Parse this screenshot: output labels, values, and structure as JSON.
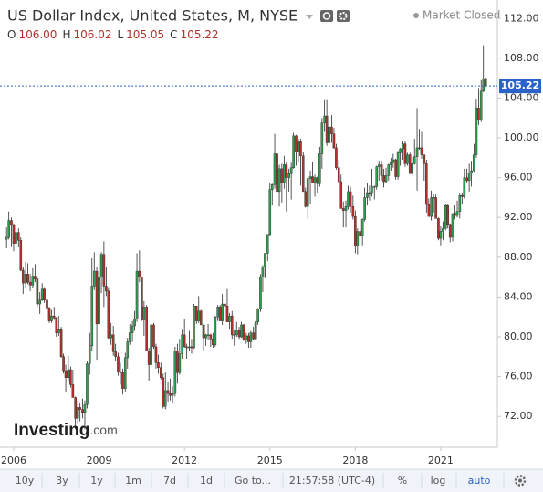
{
  "chart_data": {
    "type": "candlestick",
    "title": "US Dollar Index, United States, M, NYSE",
    "status": "Market Closed",
    "ohlc_labels": [
      "O",
      "H",
      "L",
      "C"
    ],
    "ohlc_values": [
      "106.00",
      "106.02",
      "105.05",
      "105.22"
    ],
    "watermark": [
      "Investing",
      ".com"
    ],
    "toolbar": [
      "10y",
      "3y",
      "1y",
      "1m",
      "7d",
      "1d",
      "Go to...",
      "21:57:58 (UTC-4)",
      "%",
      "log",
      "auto"
    ],
    "up_color": "#2f9d4e",
    "down_color": "#b3302b",
    "current_value": 105.22,
    "current_color": "#2a62c9",
    "log_scale": false,
    "grid": false,
    "xlim": [
      2005.68,
      2022.99
    ],
    "xticks": [
      2006,
      2009,
      2012,
      2015,
      2018,
      2021
    ],
    "ylim": [
      68.9,
      113.4
    ],
    "yticks": [
      {
        "value": 72,
        "label": "72.00"
      },
      {
        "value": 76,
        "label": "76.00"
      },
      {
        "value": 80,
        "label": "80.00"
      },
      {
        "value": 84,
        "label": "84.00"
      },
      {
        "value": 88,
        "label": "88.00"
      },
      {
        "value": 92,
        "label": "92.00"
      },
      {
        "value": 96,
        "label": "96.00"
      },
      {
        "value": 100,
        "label": "100.00"
      },
      {
        "value": 104,
        "label": "104.00"
      },
      {
        "value": 108,
        "label": "108.00"
      },
      {
        "value": 112,
        "label": "112.00"
      }
    ],
    "x": [
      2005.75,
      2005.83,
      2005.92,
      2006.0,
      2006.08,
      2006.17,
      2006.25,
      2006.33,
      2006.42,
      2006.5,
      2006.58,
      2006.67,
      2006.75,
      2006.83,
      2006.92,
      2007.0,
      2007.08,
      2007.17,
      2007.25,
      2007.33,
      2007.42,
      2007.5,
      2007.58,
      2007.67,
      2007.75,
      2007.83,
      2007.92,
      2008.0,
      2008.08,
      2008.17,
      2008.25,
      2008.33,
      2008.42,
      2008.5,
      2008.58,
      2008.67,
      2008.75,
      2008.83,
      2008.92,
      2009.0,
      2009.08,
      2009.17,
      2009.25,
      2009.33,
      2009.42,
      2009.5,
      2009.58,
      2009.67,
      2009.75,
      2009.83,
      2009.92,
      2010.0,
      2010.08,
      2010.17,
      2010.25,
      2010.33,
      2010.42,
      2010.5,
      2010.58,
      2010.67,
      2010.75,
      2010.83,
      2010.92,
      2011.0,
      2011.08,
      2011.17,
      2011.25,
      2011.33,
      2011.42,
      2011.5,
      2011.58,
      2011.67,
      2011.75,
      2011.83,
      2011.92,
      2012.0,
      2012.08,
      2012.17,
      2012.25,
      2012.33,
      2012.42,
      2012.5,
      2012.58,
      2012.67,
      2012.75,
      2012.83,
      2012.92,
      2013.0,
      2013.08,
      2013.17,
      2013.25,
      2013.33,
      2013.42,
      2013.5,
      2013.58,
      2013.67,
      2013.75,
      2013.83,
      2013.92,
      2014.0,
      2014.08,
      2014.17,
      2014.25,
      2014.33,
      2014.42,
      2014.5,
      2014.58,
      2014.67,
      2014.75,
      2014.83,
      2014.92,
      2015.0,
      2015.08,
      2015.17,
      2015.25,
      2015.33,
      2015.42,
      2015.5,
      2015.58,
      2015.67,
      2015.75,
      2015.83,
      2015.92,
      2016.0,
      2016.08,
      2016.17,
      2016.25,
      2016.33,
      2016.42,
      2016.5,
      2016.58,
      2016.67,
      2016.75,
      2016.83,
      2016.92,
      2017.0,
      2017.08,
      2017.17,
      2017.25,
      2017.33,
      2017.42,
      2017.5,
      2017.58,
      2017.67,
      2017.75,
      2017.83,
      2017.92,
      2018.0,
      2018.08,
      2018.17,
      2018.25,
      2018.33,
      2018.42,
      2018.5,
      2018.58,
      2018.67,
      2018.75,
      2018.83,
      2018.92,
      2019.0,
      2019.08,
      2019.17,
      2019.25,
      2019.33,
      2019.42,
      2019.5,
      2019.58,
      2019.67,
      2019.75,
      2019.83,
      2019.92,
      2020.0,
      2020.08,
      2020.17,
      2020.25,
      2020.33,
      2020.42,
      2020.5,
      2020.58,
      2020.67,
      2020.75,
      2020.83,
      2020.92,
      2021.0,
      2021.08,
      2021.17,
      2021.25,
      2021.33,
      2021.42,
      2021.5,
      2021.58,
      2021.67,
      2021.75,
      2021.83,
      2021.92,
      2022.0,
      2022.08,
      2022.17,
      2022.25,
      2022.33,
      2022.42,
      2022.5,
      2022.58
    ],
    "open": [
      89.8,
      90.0,
      91.7,
      91.2,
      89.4,
      90.5,
      89.7,
      86.7,
      85.4,
      86.3,
      85.5,
      85.2,
      86.1,
      85.8,
      83.3,
      83.7,
      84.8,
      83.7,
      82.9,
      81.6,
      82.1,
      81.9,
      80.4,
      80.8,
      78.0,
      76.6,
      75.9,
      76.7,
      75.2,
      73.9,
      71.8,
      72.9,
      72.7,
      72.4,
      73.2,
      77.3,
      79.1,
      85.1,
      86.6,
      81.3,
      86.0,
      88.3,
      85.1,
      84.6,
      79.9,
      80.2,
      78.5,
      78.0,
      76.5,
      76.4,
      74.8,
      77.9,
      79.5,
      80.4,
      81.1,
      81.8,
      86.6,
      86.0,
      81.7,
      83.0,
      78.6,
      77.2,
      81.2,
      79.0,
      77.4,
      76.9,
      75.9,
      73.0,
      74.6,
      74.3,
      74.1,
      74.3,
      78.6,
      76.4,
      78.3,
      80.2,
      79.0,
      78.9,
      79.0,
      78.9,
      83.1,
      81.6,
      82.6,
      81.2,
      79.9,
      80.2,
      80.2,
      79.8,
      79.2,
      82.0,
      83.0,
      81.6,
      83.3,
      83.1,
      81.5,
      82.1,
      80.2,
      80.2,
      80.7,
      80.0,
      81.2,
      79.7,
      80.1,
      79.5,
      80.4,
      79.8,
      81.5,
      82.8,
      86.0,
      87.0,
      88.4,
      90.3,
      94.8,
      95.3,
      98.4,
      94.6,
      96.9,
      95.5,
      97.3,
      96.0,
      96.4,
      97.0,
      100.2,
      98.6,
      99.6,
      98.2,
      94.6,
      93.1,
      95.9,
      96.1,
      95.5,
      96.0,
      95.4,
      98.4,
      101.5,
      102.2,
      99.5,
      101.1,
      100.4,
      99.0,
      97.0,
      95.6,
      92.9,
      92.7,
      93.1,
      94.6,
      93.1,
      92.1,
      89.1,
      90.6,
      90.2,
      91.8,
      94.0,
      94.5,
      94.5,
      95.1,
      95.1,
      97.1,
      97.3,
      96.2,
      95.6,
      96.2,
      97.3,
      97.5,
      97.8,
      96.1,
      98.5,
      98.9,
      99.4,
      97.4,
      98.3,
      96.4,
      97.4,
      98.1,
      99.0,
      99.0,
      98.3,
      97.4,
      93.3,
      92.1,
      94.0,
      94.0,
      91.9,
      89.9,
      90.6,
      90.9,
      93.2,
      91.3,
      90.0,
      92.4,
      92.2,
      92.6,
      94.2,
      94.1,
      96.0,
      95.7,
      96.5,
      96.7,
      98.3,
      103.0,
      101.8,
      104.7,
      106.0
    ],
    "high": [
      91.0,
      92.6,
      92.0,
      91.4,
      91.5,
      90.9,
      90.0,
      87.0,
      87.6,
      87.4,
      86.3,
      86.9,
      87.3,
      86.0,
      84.5,
      85.4,
      85.0,
      84.4,
      83.0,
      82.7,
      83.0,
      82.0,
      82.1,
      81.0,
      78.3,
      77.2,
      78.1,
      77.0,
      76.7,
      74.0,
      73.6,
      73.4,
      73.8,
      73.6,
      77.6,
      80.4,
      87.9,
      88.5,
      87.0,
      86.3,
      88.5,
      89.6,
      87.0,
      85.0,
      81.4,
      81.1,
      79.3,
      78.4,
      77.4,
      76.8,
      78.4,
      79.9,
      81.3,
      81.6,
      82.6,
      88.4,
      88.7,
      86.0,
      83.6,
      83.2,
      78.9,
      81.4,
      81.4,
      79.3,
      78.2,
      77.4,
      76.3,
      76.4,
      75.5,
      75.8,
      75.0,
      79.0,
      79.3,
      79.8,
      80.8,
      81.8,
      79.3,
      80.6,
      79.8,
      83.3,
      83.1,
      84.1,
      82.7,
      81.2,
      80.3,
      81.3,
      80.3,
      80.4,
      82.1,
      83.2,
      83.2,
      84.3,
      83.4,
      84.8,
      82.4,
      82.6,
      80.7,
      81.5,
      81.0,
      81.5,
      81.3,
      80.4,
      80.4,
      80.6,
      81.0,
      81.6,
      82.9,
      86.3,
      87.2,
      88.4,
      90.3,
      95.5,
      95.4,
      100.4,
      100.1,
      97.3,
      97.4,
      98.2,
      97.6,
      96.9,
      97.5,
      100.5,
      100.3,
      99.9,
      99.9,
      98.6,
      95.0,
      96.0,
      96.7,
      97.6,
      96.3,
      96.1,
      99.1,
      102.0,
      103.8,
      103.8,
      101.8,
      102.3,
      101.0,
      99.4,
      97.8,
      96.3,
      93.6,
      93.7,
      95.2,
      95.1,
      94.2,
      92.7,
      90.9,
      90.9,
      91.9,
      95.0,
      95.5,
      95.2,
      96.9,
      95.2,
      97.2,
      97.7,
      97.7,
      96.9,
      97.0,
      97.4,
      98.0,
      98.4,
      97.9,
      98.7,
      99.0,
      99.7,
      99.7,
      98.5,
      98.5,
      98.0,
      99.9,
      103.0,
      100.9,
      100.6,
      98.3,
      97.8,
      93.9,
      94.7,
      94.3,
      94.3,
      92.0,
      91.1,
      91.6,
      93.4,
      93.4,
      91.4,
      92.4,
      93.2,
      93.7,
      94.5,
      94.5,
      96.9,
      96.9,
      97.4,
      97.7,
      99.4,
      103.9,
      105.0,
      105.8,
      109.3,
      106.02
    ],
    "low": [
      88.9,
      89.8,
      89.0,
      88.6,
      89.1,
      89.0,
      86.6,
      84.3,
      84.9,
      85.3,
      84.6,
      84.9,
      85.5,
      83.0,
      82.3,
      83.6,
      83.4,
      82.6,
      81.4,
      81.4,
      81.7,
      80.0,
      80.1,
      77.9,
      76.3,
      74.5,
      75.6,
      74.9,
      73.9,
      70.7,
      71.3,
      71.5,
      71.8,
      70.7,
      72.8,
      76.2,
      78.6,
      84.7,
      77.7,
      79.8,
      84.4,
      83.0,
      84.1,
      79.8,
      79.2,
      78.1,
      77.6,
      76.1,
      75.2,
      74.2,
      74.5,
      76.8,
      79.2,
      79.5,
      80.6,
      81.5,
      85.5,
      81.6,
      80.1,
      78.6,
      75.6,
      76.9,
      78.8,
      76.8,
      76.3,
      75.7,
      72.8,
      72.7,
      73.5,
      73.6,
      73.4,
      74.0,
      75.3,
      76.2,
      77.8,
      78.9,
      77.8,
      78.6,
      78.3,
      78.8,
      81.3,
      81.4,
      81.2,
      78.6,
      79.1,
      79.7,
      79.0,
      78.9,
      79.0,
      81.6,
      81.6,
      81.2,
      80.5,
      81.5,
      80.8,
      79.8,
      79.1,
      80.0,
      79.8,
      79.9,
      79.6,
      79.3,
      78.9,
      78.9,
      79.7,
      79.7,
      81.2,
      82.5,
      84.5,
      85.9,
      87.6,
      90.1,
      93.2,
      94.9,
      94.5,
      93.1,
      93.5,
      94.9,
      92.6,
      94.6,
      93.8,
      96.9,
      97.2,
      97.5,
      95.2,
      94.6,
      93.0,
      91.9,
      93.4,
      95.5,
      94.1,
      94.5,
      95.1,
      96.9,
      100.6,
      99.2,
      99.2,
      99.5,
      98.9,
      96.8,
      95.5,
      92.9,
      91.0,
      91.0,
      92.8,
      92.5,
      91.8,
      88.4,
      88.3,
      88.9,
      89.2,
      91.6,
      93.2,
      93.7,
      94.1,
      93.8,
      94.8,
      95.7,
      95.7,
      95.0,
      95.5,
      95.7,
      96.7,
      97.0,
      95.8,
      95.8,
      97.2,
      97.8,
      97.1,
      97.2,
      96.4,
      96.2,
      97.3,
      94.7,
      98.8,
      97.9,
      95.7,
      92.5,
      92.1,
      91.7,
      92.5,
      91.9,
      89.7,
      89.2,
      89.7,
      90.7,
      90.9,
      89.5,
      89.6,
      91.8,
      92.0,
      91.9,
      93.3,
      93.9,
      95.5,
      94.6,
      95.1,
      96.6,
      98.0,
      101.3,
      101.6,
      104.6,
      105.05
    ],
    "close": [
      90.0,
      91.7,
      91.2,
      89.4,
      90.5,
      89.7,
      86.7,
      85.4,
      86.3,
      85.5,
      85.2,
      86.1,
      85.8,
      83.3,
      83.7,
      84.8,
      83.7,
      82.9,
      81.6,
      82.1,
      81.9,
      80.4,
      80.8,
      78.0,
      76.6,
      75.9,
      76.7,
      75.2,
      73.9,
      71.8,
      72.9,
      72.7,
      72.4,
      73.2,
      77.3,
      79.1,
      85.1,
      86.6,
      81.3,
      86.0,
      88.3,
      85.1,
      84.6,
      79.9,
      80.2,
      78.5,
      78.0,
      76.5,
      76.4,
      74.8,
      77.9,
      79.5,
      80.4,
      81.1,
      81.8,
      86.6,
      86.0,
      81.7,
      83.0,
      78.6,
      77.2,
      81.2,
      79.0,
      77.4,
      76.9,
      75.9,
      73.0,
      74.6,
      74.3,
      74.1,
      74.3,
      78.6,
      76.4,
      78.3,
      80.2,
      79.0,
      78.9,
      79.0,
      78.9,
      83.1,
      81.6,
      82.6,
      81.2,
      79.9,
      80.2,
      80.2,
      79.8,
      79.2,
      82.0,
      83.0,
      81.6,
      83.3,
      83.1,
      81.5,
      82.1,
      80.2,
      80.2,
      80.7,
      80.0,
      81.2,
      79.7,
      80.1,
      79.5,
      80.4,
      79.8,
      81.5,
      82.8,
      86.0,
      87.0,
      88.4,
      90.3,
      94.8,
      95.3,
      98.4,
      94.6,
      96.9,
      95.5,
      97.3,
      96.0,
      96.4,
      97.0,
      100.2,
      98.6,
      99.6,
      98.2,
      94.6,
      93.1,
      95.9,
      96.1,
      95.5,
      96.0,
      95.4,
      98.4,
      101.5,
      102.2,
      99.5,
      101.1,
      100.4,
      99.0,
      97.0,
      95.6,
      92.9,
      92.7,
      93.1,
      94.6,
      93.1,
      92.1,
      89.1,
      90.6,
      90.2,
      91.8,
      94.0,
      94.5,
      94.5,
      95.1,
      95.1,
      97.1,
      97.3,
      96.2,
      95.6,
      96.2,
      97.3,
      97.5,
      97.8,
      96.1,
      98.5,
      98.9,
      99.4,
      97.4,
      98.3,
      96.4,
      97.4,
      98.1,
      99.0,
      99.0,
      98.3,
      97.4,
      93.3,
      92.1,
      94.0,
      94.0,
      91.9,
      89.9,
      90.6,
      90.9,
      93.2,
      91.3,
      90.0,
      92.4,
      92.2,
      92.6,
      94.2,
      94.1,
      96.0,
      95.7,
      96.5,
      96.7,
      98.3,
      103.0,
      101.8,
      104.7,
      105.9,
      105.22
    ]
  }
}
